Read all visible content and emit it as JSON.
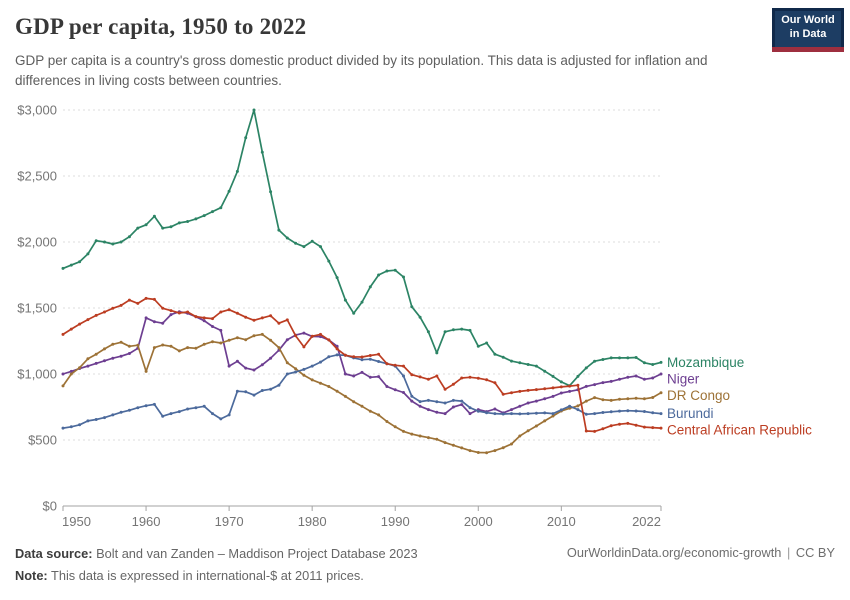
{
  "header": {
    "title": "GDP per capita, 1950 to 2022",
    "subtitle": "GDP per capita is a country's gross domestic product divided by its population. This data is adjusted for inflation and differences in living costs between countries.",
    "logo": {
      "line1": "Our World",
      "line2": "in Data"
    }
  },
  "footer": {
    "source_label": "Data source:",
    "source_text": " Bolt and van Zanden – Maddison Project Database 2023",
    "note_label": "Note:",
    "note_text": " This data is expressed in international-$ at 2011 prices.",
    "link": "OurWorldinData.org/economic-growth",
    "divider": "|",
    "license": "CC BY"
  },
  "chart_data": {
    "type": "line",
    "title": "GDP per capita, 1950 to 2022",
    "xlabel": "",
    "ylabel": "",
    "xlim": [
      1950,
      2022
    ],
    "ylim": [
      0,
      3000
    ],
    "grid": "horizontal-dashed",
    "legend_position": "right-of-line-ends",
    "point_markers": true,
    "x_ticks": [
      1950,
      1960,
      1970,
      1980,
      1990,
      2000,
      2010,
      2022
    ],
    "y_ticks": [
      {
        "value": 0,
        "label": "$0"
      },
      {
        "value": 500,
        "label": "$500"
      },
      {
        "value": 1000,
        "label": "$1,000"
      },
      {
        "value": 1500,
        "label": "$1,500"
      },
      {
        "value": 2000,
        "label": "$2,000"
      },
      {
        "value": 2500,
        "label": "$2,500"
      },
      {
        "value": 3000,
        "label": "$3,000"
      }
    ],
    "x_start_year": 1950,
    "series": [
      {
        "name": "Mozambique",
        "color": "#2C8465",
        "values": [
          1800,
          1825,
          1850,
          1910,
          2010,
          2000,
          1985,
          2000,
          2040,
          2105,
          2130,
          2195,
          2105,
          2115,
          2145,
          2155,
          2175,
          2200,
          2230,
          2260,
          2385,
          2535,
          2790,
          3000,
          2680,
          2380,
          2090,
          2030,
          1990,
          1965,
          2005,
          1965,
          1855,
          1730,
          1560,
          1460,
          1545,
          1660,
          1750,
          1780,
          1786,
          1735,
          1510,
          1430,
          1320,
          1160,
          1320,
          1335,
          1340,
          1330,
          1210,
          1235,
          1150,
          1127,
          1098,
          1085,
          1072,
          1060,
          1021,
          982,
          940,
          911,
          982,
          1046,
          1097,
          1110,
          1122,
          1122,
          1122,
          1125,
          1085,
          1072,
          1088
        ]
      },
      {
        "name": "Niger",
        "color": "#6D3E91",
        "values": [
          1000,
          1020,
          1042,
          1060,
          1080,
          1100,
          1120,
          1135,
          1155,
          1195,
          1425,
          1396,
          1385,
          1450,
          1472,
          1460,
          1434,
          1404,
          1360,
          1330,
          1060,
          1096,
          1045,
          1030,
          1070,
          1120,
          1180,
          1260,
          1295,
          1310,
          1285,
          1283,
          1258,
          1210,
          1000,
          985,
          1012,
          975,
          980,
          905,
          880,
          860,
          795,
          755,
          730,
          710,
          700,
          750,
          768,
          700,
          730,
          715,
          735,
          705,
          730,
          755,
          780,
          795,
          812,
          830,
          856,
          868,
          880,
          906,
          920,
          935,
          944,
          960,
          975,
          985,
          960,
          970,
          1000
        ]
      },
      {
        "name": "DR Congo",
        "color": "#9D7236",
        "values": [
          910,
          1000,
          1048,
          1115,
          1150,
          1190,
          1225,
          1240,
          1210,
          1218,
          1020,
          1200,
          1220,
          1210,
          1175,
          1200,
          1195,
          1225,
          1245,
          1235,
          1255,
          1275,
          1260,
          1290,
          1300,
          1255,
          1200,
          1085,
          1040,
          990,
          955,
          930,
          905,
          870,
          830,
          790,
          755,
          718,
          690,
          640,
          600,
          565,
          545,
          530,
          518,
          505,
          480,
          460,
          440,
          420,
          405,
          404,
          420,
          442,
          470,
          530,
          570,
          606,
          645,
          682,
          720,
          740,
          758,
          795,
          821,
          805,
          800,
          808,
          812,
          816,
          812,
          822,
          858
        ]
      },
      {
        "name": "Burundi",
        "color": "#4C6A9C",
        "values": [
          590,
          600,
          615,
          645,
          655,
          670,
          690,
          710,
          725,
          745,
          760,
          770,
          680,
          700,
          715,
          735,
          745,
          755,
          700,
          660,
          690,
          870,
          865,
          840,
          875,
          885,
          915,
          1000,
          1015,
          1035,
          1060,
          1090,
          1130,
          1145,
          1142,
          1122,
          1108,
          1112,
          1095,
          1078,
          1060,
          985,
          831,
          791,
          800,
          790,
          780,
          800,
          795,
          745,
          718,
          707,
          700,
          697,
          700,
          698,
          700,
          703,
          705,
          700,
          728,
          756,
          730,
          695,
          700,
          708,
          714,
          719,
          722,
          720,
          716,
          706,
          700
        ]
      },
      {
        "name": "Central African Republic",
        "color": "#BC3D22",
        "values": [
          1300,
          1340,
          1378,
          1412,
          1444,
          1470,
          1498,
          1520,
          1560,
          1535,
          1573,
          1565,
          1498,
          1480,
          1462,
          1470,
          1435,
          1425,
          1420,
          1470,
          1487,
          1460,
          1430,
          1407,
          1425,
          1442,
          1385,
          1410,
          1290,
          1205,
          1286,
          1300,
          1258,
          1190,
          1142,
          1130,
          1129,
          1140,
          1149,
          1078,
          1066,
          1060,
          995,
          978,
          960,
          985,
          884,
          922,
          970,
          975,
          968,
          956,
          933,
          846,
          858,
          868,
          876,
          882,
          888,
          895,
          902,
          908,
          915,
          568,
          565,
          585,
          608,
          620,
          626,
          612,
          598,
          594,
          590
        ]
      }
    ]
  }
}
